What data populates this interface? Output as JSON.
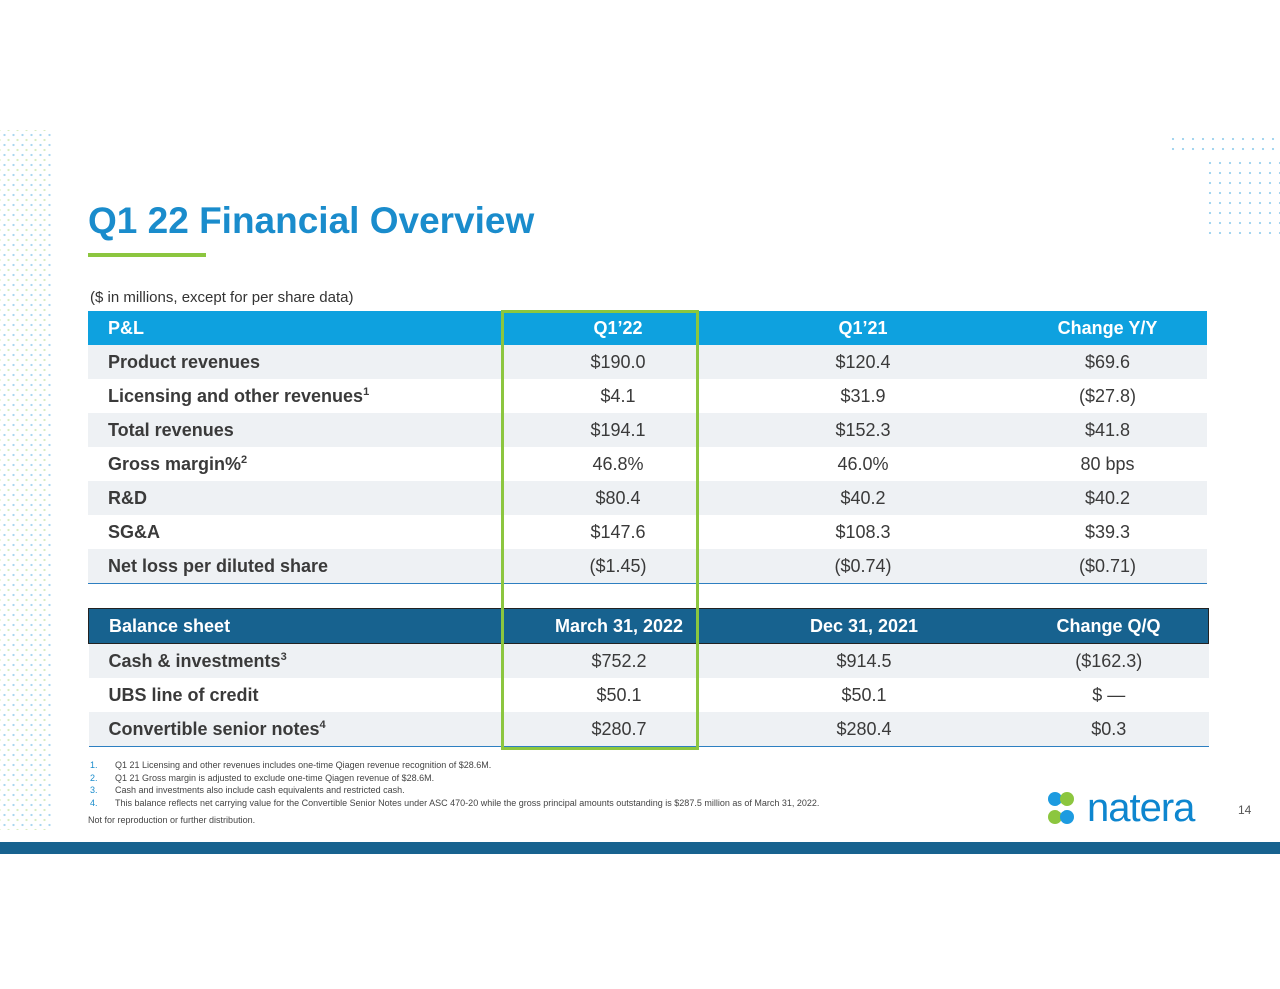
{
  "slide": {
    "title": "Q1 22 Financial Overview",
    "subtitle": "($ in millions, except for per share data)",
    "page_number": "14",
    "logo_text": "natera",
    "disclaimer": "Not for reproduction or further distribution.",
    "colors": {
      "title_blue": "#1a8ccc",
      "pl_header": "#0ea1df",
      "bs_header": "#17628f",
      "highlight_green": "#8cc63f",
      "row_shade": "#eef1f4"
    }
  },
  "pl_table": {
    "headers": [
      "P&L",
      "Q1’22",
      "Q1’21",
      "Change Y/Y"
    ],
    "rows": [
      {
        "label": "Product revenues",
        "sup": "",
        "values": [
          "$190.0",
          "$120.4",
          "$69.6"
        ]
      },
      {
        "label": "Licensing and other revenues",
        "sup": "1",
        "values": [
          "$4.1",
          "$31.9",
          "($27.8)"
        ]
      },
      {
        "label": "Total revenues",
        "sup": "",
        "values": [
          "$194.1",
          "$152.3",
          "$41.8"
        ]
      },
      {
        "label": "Gross margin%",
        "sup": "2",
        "values": [
          "46.8%",
          "46.0%",
          "80 bps"
        ]
      },
      {
        "label": "R&D",
        "sup": "",
        "values": [
          "$80.4",
          "$40.2",
          "$40.2"
        ]
      },
      {
        "label": "SG&A",
        "sup": "",
        "values": [
          "$147.6",
          "$108.3",
          "$39.3"
        ]
      },
      {
        "label": "Net loss per diluted share",
        "sup": "",
        "values": [
          "($1.45)",
          "($0.74)",
          "($0.71)"
        ]
      }
    ]
  },
  "bs_table": {
    "headers": [
      "Balance sheet",
      "March 31, 2022",
      "Dec 31, 2021",
      "Change Q/Q"
    ],
    "rows": [
      {
        "label": "Cash & investments",
        "sup": "3",
        "values": [
          "$752.2",
          "$914.5",
          "($162.3)"
        ]
      },
      {
        "label": "UBS line of credit",
        "sup": "",
        "values": [
          "$50.1",
          "$50.1",
          "$ —"
        ]
      },
      {
        "label": "Convertible senior notes",
        "sup": "4",
        "values": [
          "$280.7",
          "$280.4",
          "$0.3"
        ]
      }
    ]
  },
  "footnotes": [
    {
      "num": "1.",
      "text": "Q1 21 Licensing and other revenues includes one-time Qiagen revenue recognition of $28.6M."
    },
    {
      "num": "2.",
      "text": "Q1 21 Gross margin is adjusted to exclude one-time Qiagen revenue of $28.6M."
    },
    {
      "num": "3.",
      "text": "Cash and investments also include cash equivalents and restricted cash."
    },
    {
      "num": "4.",
      "text": "This balance reflects net carrying value for the Convertible Senior Notes under ASC 470-20 while the gross principal amounts outstanding is $287.5 million as of March 31, 2022."
    }
  ]
}
